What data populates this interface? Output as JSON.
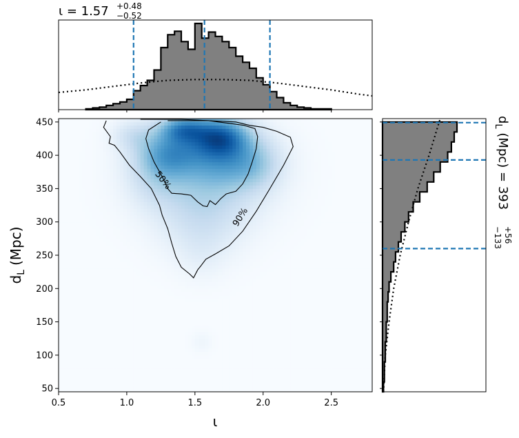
{
  "chart_data": {
    "type": "heatmap",
    "subtype": "corner-joint-posterior",
    "xlabel": "ι",
    "ylabel": "d",
    "ylabel_sub": "L",
    "ylabel_unit": "(Mpc)",
    "xlim": [
      0.5,
      2.8
    ],
    "ylim": [
      45,
      455
    ],
    "xticks": [
      "0.5",
      "1.0",
      "1.5",
      "2.0",
      "2.5"
    ],
    "yticks": [
      "50",
      "100",
      "150",
      "200",
      "250",
      "300",
      "350",
      "400",
      "450"
    ],
    "colormap": "Blues",
    "contour_labels": [
      "50%",
      "90%"
    ],
    "iota_summary": {
      "lhs": "ι",
      "eq": " = ",
      "median": "1.57",
      "plus": "+0.48",
      "minus": "−0.52"
    },
    "dl_summary": {
      "lhs": "d",
      "lhs_sub": "L",
      "unit": " (Mpc) = ",
      "median": "393",
      "plus": "+56",
      "minus": "−133"
    },
    "iota_quantiles": [
      1.05,
      1.57,
      2.05
    ],
    "dl_quantiles": [
      260,
      393,
      449
    ],
    "quantile_color": "#1f77b4",
    "hist_fill": "#808080",
    "density_peaks": [
      {
        "x": 1.68,
        "y": 428,
        "sx": 0.14,
        "sy": 20,
        "w": 1.0
      },
      {
        "x": 1.42,
        "y": 440,
        "sx": 0.12,
        "sy": 14,
        "w": 0.75
      },
      {
        "x": 1.32,
        "y": 405,
        "sx": 0.16,
        "sy": 24,
        "w": 0.65
      },
      {
        "x": 1.75,
        "y": 395,
        "sx": 0.2,
        "sy": 28,
        "w": 0.5
      },
      {
        "x": 1.58,
        "y": 365,
        "sx": 0.28,
        "sy": 45,
        "w": 0.38
      },
      {
        "x": 1.55,
        "y": 300,
        "sx": 0.2,
        "sy": 35,
        "w": 0.16
      },
      {
        "x": 1.22,
        "y": 370,
        "sx": 0.14,
        "sy": 30,
        "w": 0.22
      },
      {
        "x": 1.95,
        "y": 385,
        "sx": 0.12,
        "sy": 25,
        "w": 0.2
      },
      {
        "x": 1.05,
        "y": 430,
        "sx": 0.1,
        "sy": 15,
        "w": 0.2
      },
      {
        "x": 1.55,
        "y": 250,
        "sx": 0.12,
        "sy": 25,
        "w": 0.06
      },
      {
        "x": 1.55,
        "y": 120,
        "sx": 0.05,
        "sy": 10,
        "w": 0.04
      }
    ],
    "contour_50": [
      [
        1.25,
        450
      ],
      [
        1.16,
        438
      ],
      [
        1.14,
        425
      ],
      [
        1.16,
        410
      ],
      [
        1.2,
        390
      ],
      [
        1.26,
        368
      ],
      [
        1.3,
        350
      ],
      [
        1.33,
        343
      ],
      [
        1.4,
        342
      ],
      [
        1.47,
        340
      ],
      [
        1.52,
        330
      ],
      [
        1.56,
        324
      ],
      [
        1.59,
        323
      ],
      [
        1.61,
        332
      ],
      [
        1.65,
        326
      ],
      [
        1.69,
        335
      ],
      [
        1.73,
        342
      ],
      [
        1.8,
        346
      ],
      [
        1.85,
        357
      ],
      [
        1.89,
        372
      ],
      [
        1.92,
        390
      ],
      [
        1.95,
        410
      ],
      [
        1.96,
        428
      ],
      [
        1.94,
        440
      ],
      [
        1.86,
        445
      ],
      [
        1.75,
        448
      ],
      [
        1.6,
        452
      ],
      [
        1.45,
        452
      ],
      [
        1.3,
        452
      ]
    ],
    "contour_90": [
      [
        0.85,
        452
      ],
      [
        0.83,
        442
      ],
      [
        0.88,
        428
      ],
      [
        0.87,
        418
      ],
      [
        0.91,
        415
      ],
      [
        0.95,
        405
      ],
      [
        1.02,
        385
      ],
      [
        1.1,
        368
      ],
      [
        1.18,
        350
      ],
      [
        1.24,
        325
      ],
      [
        1.26,
        310
      ],
      [
        1.3,
        290
      ],
      [
        1.33,
        268
      ],
      [
        1.36,
        248
      ],
      [
        1.4,
        232
      ],
      [
        1.46,
        222
      ],
      [
        1.49,
        216
      ],
      [
        1.52,
        228
      ],
      [
        1.54,
        233
      ],
      [
        1.58,
        244
      ],
      [
        1.65,
        252
      ],
      [
        1.75,
        264
      ],
      [
        1.85,
        286
      ],
      [
        1.95,
        316
      ],
      [
        2.05,
        350
      ],
      [
        2.15,
        385
      ],
      [
        2.22,
        413
      ],
      [
        2.2,
        427
      ],
      [
        2.1,
        436
      ],
      [
        2.0,
        442
      ],
      [
        1.9,
        445
      ],
      [
        1.8,
        450
      ],
      [
        1.6,
        452
      ],
      [
        1.4,
        454
      ],
      [
        1.1,
        454
      ]
    ],
    "iota_hist_edges": [
      0.7,
      0.75,
      0.8,
      0.85,
      0.9,
      0.95,
      1.0,
      1.05,
      1.1,
      1.15,
      1.2,
      1.25,
      1.3,
      1.35,
      1.4,
      1.45,
      1.5,
      1.55,
      1.6,
      1.65,
      1.7,
      1.75,
      1.8,
      1.85,
      1.9,
      1.95,
      2.0,
      2.05,
      2.1,
      2.15,
      2.2,
      2.25,
      2.3,
      2.35,
      2.4,
      2.45,
      2.5
    ],
    "iota_hist_values": [
      0.01,
      0.02,
      0.03,
      0.05,
      0.07,
      0.09,
      0.12,
      0.22,
      0.28,
      0.34,
      0.46,
      0.72,
      0.87,
      0.91,
      0.79,
      0.7,
      1.0,
      0.83,
      0.9,
      0.85,
      0.79,
      0.72,
      0.62,
      0.55,
      0.48,
      0.37,
      0.29,
      0.21,
      0.14,
      0.08,
      0.05,
      0.03,
      0.02,
      0.01,
      0.01,
      0.01
    ],
    "iota_prior_x": [
      0.5,
      0.7,
      0.9,
      1.1,
      1.3,
      1.5,
      1.7,
      1.9,
      2.1,
      2.3,
      2.5,
      2.7,
      2.8
    ],
    "iota_prior_y": [
      0.2,
      0.23,
      0.27,
      0.31,
      0.34,
      0.35,
      0.35,
      0.34,
      0.31,
      0.27,
      0.23,
      0.18,
      0.16
    ],
    "dl_hist_edges": [
      45,
      60,
      75,
      90,
      105,
      120,
      135,
      150,
      165,
      180,
      195,
      210,
      225,
      240,
      255,
      270,
      285,
      300,
      315,
      330,
      345,
      360,
      375,
      390,
      405,
      420,
      435,
      450
    ],
    "dl_hist_values": [
      0.01,
      0.02,
      0.02,
      0.03,
      0.03,
      0.04,
      0.04,
      0.05,
      0.05,
      0.06,
      0.07,
      0.09,
      0.12,
      0.14,
      0.17,
      0.2,
      0.24,
      0.28,
      0.33,
      0.4,
      0.48,
      0.55,
      0.62,
      0.7,
      0.74,
      0.77,
      0.8
    ],
    "dl_prior_y": [
      45,
      100,
      150,
      200,
      250,
      300,
      350,
      400,
      455
    ],
    "dl_prior_x": [
      0.01,
      0.03,
      0.07,
      0.12,
      0.19,
      0.28,
      0.38,
      0.5,
      0.62
    ]
  }
}
